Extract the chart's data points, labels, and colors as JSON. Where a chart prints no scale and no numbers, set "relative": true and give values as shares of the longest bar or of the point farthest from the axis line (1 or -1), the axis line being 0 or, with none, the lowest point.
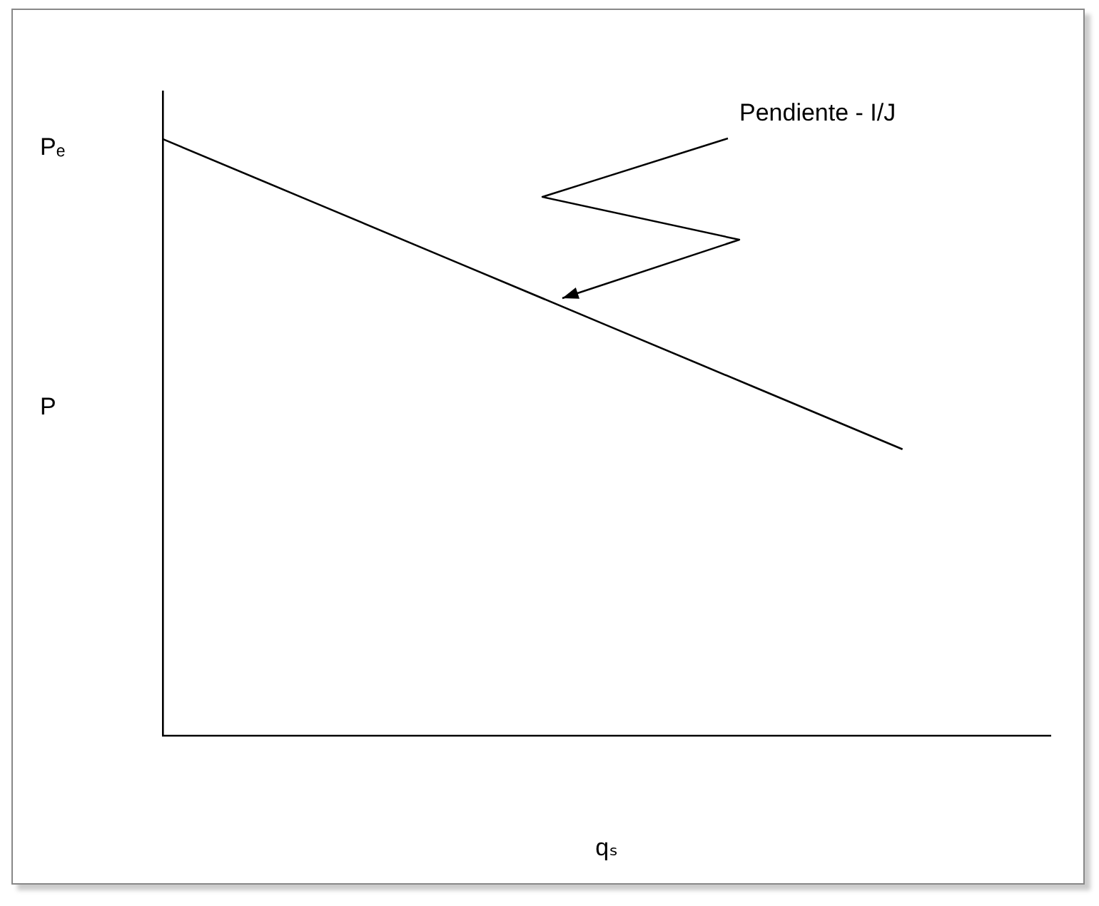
{
  "chart_data": {
    "type": "line",
    "relative": true,
    "xlabel": "qₛ",
    "ylabel": "P",
    "categories": [
      null,
      null,
      null,
      null,
      null,
      null,
      null
    ],
    "series": [
      {
        "color": "#000000",
        "values": [
          1,
          0.896,
          0.792,
          0.688,
          0.584,
          0.48,
          null
        ]
      }
    ],
    "annotations": [
      "Pₑ",
      "Pendiente - I/J"
    ],
    "grid": false,
    "legend": false,
    "marker": "none",
    "line_style": "solid"
  }
}
